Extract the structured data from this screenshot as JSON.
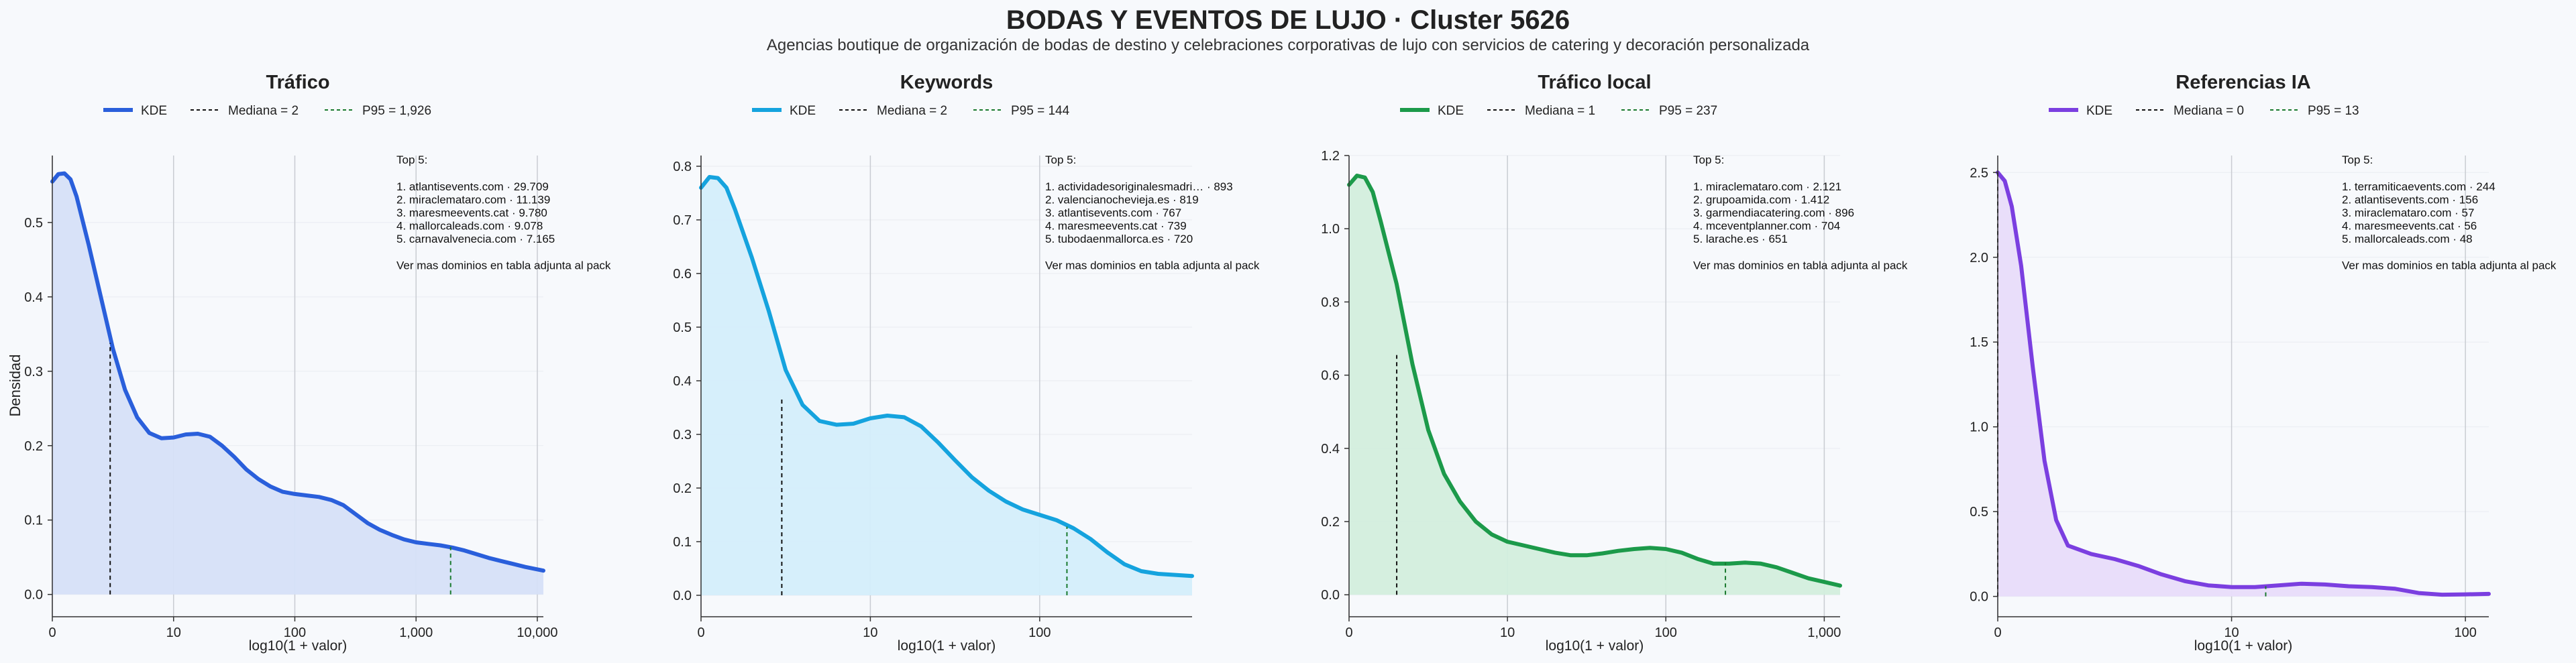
{
  "figure": {
    "title": "BODAS Y EVENTOS DE LUJO · Cluster 5626",
    "subtitle": "Agencias boutique de organización de bodas de destino y celebraciones corporativas de lujo con servicios de catering y decoración personalizada",
    "ylabel": "Densidad"
  },
  "chart_data": [
    {
      "type": "area",
      "title": "Tráfico",
      "xlabel": "log10(1 + valor)",
      "ylabel": "Densidad",
      "color": "#2a5fdb",
      "fill": "#d6e0f8",
      "xscale": "log10(1+x)",
      "xlim": [
        0,
        4.05
      ],
      "ylim": [
        -0.03,
        0.59
      ],
      "xticks": [
        0,
        1,
        2,
        3,
        4
      ],
      "xticklabels": [
        "0",
        "10",
        "100",
        "1,000",
        "10,000"
      ],
      "yticks": [
        0,
        0.1,
        0.2,
        0.3,
        0.4,
        0.5
      ],
      "yticklabels": [
        "0.0",
        "0.1",
        "0.2",
        "0.3",
        "0.4",
        "0.5"
      ],
      "kde": {
        "x": [
          0,
          0.05,
          0.1,
          0.15,
          0.2,
          0.3,
          0.4,
          0.5,
          0.6,
          0.7,
          0.8,
          0.9,
          1.0,
          1.1,
          1.2,
          1.3,
          1.4,
          1.5,
          1.6,
          1.7,
          1.8,
          1.9,
          2.0,
          2.1,
          2.2,
          2.3,
          2.4,
          2.5,
          2.6,
          2.7,
          2.8,
          2.9,
          3.0,
          3.1,
          3.2,
          3.3,
          3.4,
          3.5,
          3.6,
          3.7,
          3.8,
          3.9,
          4.05
        ],
        "y": [
          0.555,
          0.565,
          0.566,
          0.558,
          0.535,
          0.47,
          0.4,
          0.33,
          0.275,
          0.238,
          0.217,
          0.21,
          0.211,
          0.215,
          0.216,
          0.212,
          0.2,
          0.185,
          0.168,
          0.155,
          0.145,
          0.138,
          0.135,
          0.133,
          0.131,
          0.127,
          0.12,
          0.108,
          0.096,
          0.087,
          0.08,
          0.074,
          0.07,
          0.068,
          0.066,
          0.063,
          0.059,
          0.054,
          0.049,
          0.045,
          0.041,
          0.037,
          0.032
        ]
      },
      "lines": [
        {
          "label": "KDE",
          "style": "solid"
        },
        {
          "label": "Mediana = 2",
          "style": "dashed",
          "color": "#111111",
          "x": 0.477,
          "y": 0.338
        },
        {
          "label": "P95 = 1,926",
          "style": "dashed",
          "color": "#1a7a2e",
          "x": 3.285,
          "y": 0.064
        }
      ],
      "top5": {
        "header": "Top 5:",
        "items": [
          "1. atlantisevents.com · 29.709",
          "2. miraclemataro.com · 11.139",
          "3. maresmeevents.cat · 9.780",
          "4. mallorcaleads.com · 9.078",
          "5. carnavalvenecia.com · 7.165"
        ],
        "footer": "Ver mas dominios en tabla adjunta al pack"
      }
    },
    {
      "type": "area",
      "title": "Keywords",
      "xlabel": "log10(1 + valor)",
      "ylabel": "",
      "color": "#15a3de",
      "fill": "#d4eefb",
      "xscale": "log10(1+x)",
      "xlim": [
        0,
        2.9
      ],
      "ylim": [
        -0.04,
        0.82
      ],
      "xticks": [
        0,
        1,
        2
      ],
      "xticklabels": [
        "0",
        "10",
        "100"
      ],
      "yticks": [
        0,
        0.1,
        0.2,
        0.3,
        0.4,
        0.5,
        0.6,
        0.7,
        0.8
      ],
      "yticklabels": [
        "0.0",
        "0.1",
        "0.2",
        "0.3",
        "0.4",
        "0.5",
        "0.6",
        "0.7",
        "0.8"
      ],
      "kde": {
        "x": [
          0,
          0.05,
          0.1,
          0.15,
          0.2,
          0.3,
          0.4,
          0.5,
          0.6,
          0.7,
          0.8,
          0.9,
          1.0,
          1.1,
          1.2,
          1.3,
          1.4,
          1.5,
          1.6,
          1.7,
          1.8,
          1.9,
          2.0,
          2.1,
          2.2,
          2.3,
          2.4,
          2.5,
          2.6,
          2.7,
          2.8,
          2.9
        ],
        "y": [
          0.76,
          0.78,
          0.778,
          0.76,
          0.72,
          0.63,
          0.53,
          0.42,
          0.355,
          0.325,
          0.318,
          0.32,
          0.33,
          0.335,
          0.332,
          0.315,
          0.285,
          0.252,
          0.22,
          0.195,
          0.175,
          0.16,
          0.15,
          0.14,
          0.125,
          0.105,
          0.08,
          0.058,
          0.045,
          0.04,
          0.038,
          0.036
        ]
      },
      "lines": [
        {
          "label": "KDE",
          "style": "solid"
        },
        {
          "label": "Mediana = 2",
          "style": "dashed",
          "color": "#111111",
          "x": 0.477,
          "y": 0.365
        },
        {
          "label": "P95 = 144",
          "style": "dashed",
          "color": "#1a7a2e",
          "x": 2.161,
          "y": 0.128
        }
      ],
      "top5": {
        "header": "Top 5:",
        "items": [
          "1. actividadesoriginalesmadri… · 893",
          "2. valencianochevieja.es · 819",
          "3. atlantisevents.com · 767",
          "4. maresmeevents.cat · 739",
          "5. tubodaenmallorca.es · 720"
        ],
        "footer": "Ver mas dominios en tabla adjunta al pack"
      }
    },
    {
      "type": "area",
      "title": "Tráfico local",
      "xlabel": "log10(1 + valor)",
      "ylabel": "",
      "color": "#1c9a4a",
      "fill": "#d3eedd",
      "xscale": "log10(1+x)",
      "xlim": [
        0,
        3.1
      ],
      "ylim": [
        -0.06,
        1.2
      ],
      "xticks": [
        0,
        1,
        2,
        3
      ],
      "xticklabels": [
        "0",
        "10",
        "100",
        "1,000"
      ],
      "yticks": [
        0,
        0.2,
        0.4,
        0.6,
        0.8,
        1.0,
        1.2
      ],
      "yticklabels": [
        "0.0",
        "0.2",
        "0.4",
        "0.6",
        "0.8",
        "1.0",
        "1.2"
      ],
      "kde": {
        "x": [
          0,
          0.05,
          0.1,
          0.15,
          0.2,
          0.3,
          0.4,
          0.5,
          0.6,
          0.7,
          0.8,
          0.9,
          1.0,
          1.1,
          1.2,
          1.3,
          1.4,
          1.5,
          1.6,
          1.7,
          1.8,
          1.9,
          2.0,
          2.1,
          2.2,
          2.3,
          2.4,
          2.5,
          2.6,
          2.7,
          2.8,
          2.9,
          3.0,
          3.1
        ],
        "y": [
          1.12,
          1.145,
          1.14,
          1.1,
          1.02,
          0.85,
          0.63,
          0.45,
          0.33,
          0.255,
          0.2,
          0.165,
          0.145,
          0.135,
          0.125,
          0.115,
          0.108,
          0.108,
          0.113,
          0.12,
          0.125,
          0.128,
          0.125,
          0.115,
          0.098,
          0.085,
          0.085,
          0.088,
          0.085,
          0.075,
          0.06,
          0.045,
          0.035,
          0.025
        ]
      },
      "lines": [
        {
          "label": "KDE",
          "style": "solid"
        },
        {
          "label": "Mediana = 1",
          "style": "dashed",
          "color": "#111111",
          "x": 0.301,
          "y": 0.655
        },
        {
          "label": "P95 = 237",
          "style": "dashed",
          "color": "#1a7a2e",
          "x": 2.376,
          "y": 0.088
        }
      ],
      "top5": {
        "header": "Top 5:",
        "items": [
          "1. miraclemataro.com · 2.121",
          "2. grupoamida.com · 1.412",
          "3. garmendiacatering.com · 896",
          "4. mceventplanner.com · 704",
          "5. larache.es · 651"
        ],
        "footer": "Ver mas dominios en tabla adjunta al pack"
      }
    },
    {
      "type": "area",
      "title": "Referencias IA",
      "xlabel": "log10(1 + valor)",
      "ylabel": "",
      "color": "#7b3fe0",
      "fill": "#e8dcfa",
      "xscale": "log10(1+x)",
      "xlim": [
        0,
        2.1
      ],
      "ylim": [
        -0.12,
        2.6
      ],
      "xticks": [
        0,
        1,
        2
      ],
      "xticklabels": [
        "0",
        "10",
        "100"
      ],
      "yticks": [
        0,
        0.5,
        1.0,
        1.5,
        2.0,
        2.5
      ],
      "yticklabels": [
        "0.0",
        "0.5",
        "1.0",
        "1.5",
        "2.0",
        "2.5"
      ],
      "kde": {
        "x": [
          0,
          0.03,
          0.06,
          0.1,
          0.15,
          0.2,
          0.25,
          0.3,
          0.4,
          0.5,
          0.6,
          0.7,
          0.8,
          0.9,
          1.0,
          1.1,
          1.2,
          1.3,
          1.4,
          1.5,
          1.6,
          1.7,
          1.8,
          1.9,
          2.0,
          2.1
        ],
        "y": [
          2.5,
          2.45,
          2.3,
          1.95,
          1.35,
          0.8,
          0.45,
          0.3,
          0.25,
          0.22,
          0.18,
          0.13,
          0.09,
          0.065,
          0.055,
          0.055,
          0.065,
          0.075,
          0.07,
          0.06,
          0.055,
          0.045,
          0.02,
          0.01,
          0.012,
          0.015
        ]
      },
      "lines": [
        {
          "label": "KDE",
          "style": "solid"
        },
        {
          "label": "Mediana = 0",
          "style": "dashed",
          "color": "#111111",
          "x": 0,
          "y": 2.5
        },
        {
          "label": "P95 = 13",
          "style": "dashed",
          "color": "#1a7a2e",
          "x": 1.146,
          "y": 0.06
        }
      ],
      "top5": {
        "header": "Top 5:",
        "items": [
          "1. terramiticaevents.com · 244",
          "2. atlantisevents.com · 156",
          "3. miraclemataro.com · 57",
          "4. maresmeevents.cat · 56",
          "5. mallorcaleads.com · 48"
        ],
        "footer": "Ver mas dominios en tabla adjunta al pack"
      }
    }
  ]
}
